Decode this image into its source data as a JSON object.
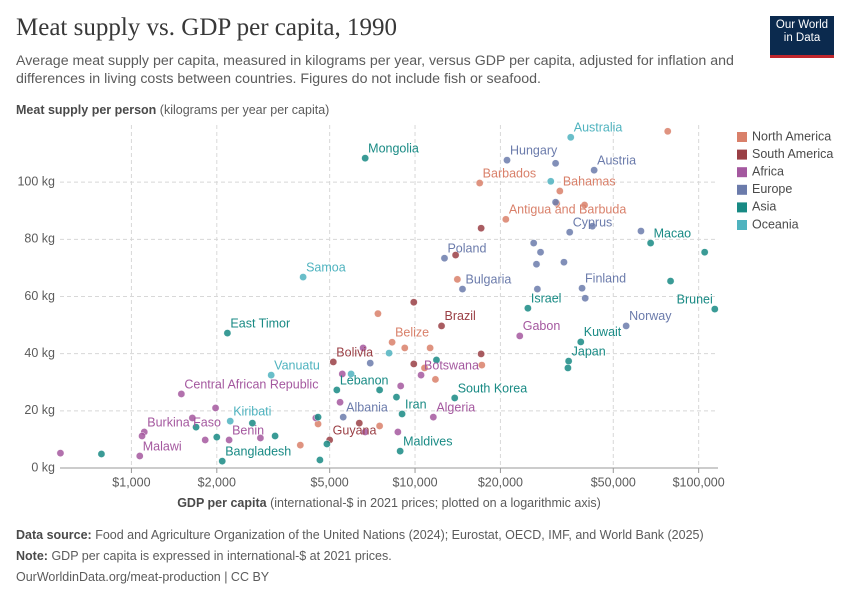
{
  "chart_data": {
    "type": "scatter",
    "title": "Meat supply vs. GDP per capita, 1990",
    "subtitle": "Average meat supply per capita, measured in kilograms per year, versus GDP per capita, adjusted for inflation and differences in living costs between countries. Figures do not include fish or seafood.",
    "logo": [
      "Our World",
      "in Data"
    ],
    "y_label": "Meat supply per person",
    "y_label_note": "(kilograms per year per capita)",
    "x_label": "GDP per capita",
    "x_label_note": "(international-$ in 2021 prices; plotted on a logarithmic axis)",
    "log_x": true,
    "grid": true,
    "legend_position": "right",
    "xlim": [
      560,
      117000
    ],
    "ylim": [
      0,
      120
    ],
    "xticks": [
      {
        "value": 1000,
        "label": "$1,000"
      },
      {
        "value": 2000,
        "label": "$2,000"
      },
      {
        "value": 5000,
        "label": "$5,000"
      },
      {
        "value": 10000,
        "label": "$10,000"
      },
      {
        "value": 20000,
        "label": "$20,000"
      },
      {
        "value": 50000,
        "label": "$50,000"
      },
      {
        "value": 100000,
        "label": "$100,000"
      }
    ],
    "yticks": [
      {
        "value": 0,
        "label": "0 kg"
      },
      {
        "value": 20,
        "label": "20 kg"
      },
      {
        "value": 40,
        "label": "40 kg"
      },
      {
        "value": 60,
        "label": "60 kg"
      },
      {
        "value": 80,
        "label": "80 kg"
      },
      {
        "value": 100,
        "label": "100 kg"
      }
    ],
    "series": [
      {
        "name": "North America",
        "color": "#d9806a",
        "x": [
          16900,
          32400,
          20900,
          8300,
          7400,
          9200,
          10800,
          11300,
          11800,
          14100,
          17200,
          31600,
          39600,
          77800,
          3940,
          4550,
          7500
        ],
        "values": [
          99.7,
          96.9,
          87,
          44,
          54,
          42,
          35,
          42,
          31,
          66,
          36,
          92.6,
          92,
          117.8,
          8,
          15.4,
          14.7
        ],
        "labels": [
          "Barbados",
          "Bahamas",
          "Antigua and Barbuda",
          "Belize",
          null,
          null,
          null,
          null,
          null,
          null,
          null,
          null,
          null,
          null,
          null,
          null,
          null
        ]
      },
      {
        "name": "South America",
        "color": "#9a3f45",
        "x": [
          12400,
          5150,
          5000,
          9900,
          9900,
          17100,
          17100,
          13900,
          6360
        ],
        "values": [
          49.7,
          37.1,
          9.8,
          58,
          36.4,
          83.9,
          39.9,
          74.5,
          15.7
        ],
        "labels": [
          "Brazil",
          "Bolivia",
          "Guyana",
          null,
          null,
          null,
          null,
          null,
          null
        ]
      },
      {
        "name": "Africa",
        "color": "#a4589f",
        "x": [
          1500,
          1110,
          1070,
          2210,
          10500,
          23400,
          11600,
          562,
          1090,
          1640,
          1980,
          1820,
          2850,
          4470,
          5540,
          6560,
          8900,
          6670,
          8700,
          5440
        ],
        "values": [
          25.9,
          12.6,
          4.2,
          9.8,
          32.5,
          46.2,
          17.8,
          5.2,
          11.2,
          17.5,
          21,
          9.8,
          10.5,
          17.5,
          32.9,
          42,
          28.7,
          12.6,
          12.6,
          23
        ],
        "labels": [
          "Central African Republic",
          "Burkina Faso",
          "Malawi",
          "Benin",
          "Botswana",
          "Gabon",
          "Algeria",
          null,
          null,
          null,
          null,
          null,
          null,
          null,
          null,
          null,
          null,
          null,
          null,
          null
        ]
      },
      {
        "name": "Europe",
        "color": "#6b7bab",
        "x": [
          21100,
          42800,
          35100,
          12700,
          14700,
          38800,
          55500,
          5580,
          31300,
          31300,
          26200,
          27700,
          26800,
          42200,
          62600,
          33500,
          39800,
          27000,
          6950
        ],
        "values": [
          107.7,
          104.2,
          82.5,
          73.4,
          62.6,
          62.9,
          49.7,
          17.8,
          106.6,
          93,
          78.7,
          75.5,
          71.3,
          84.6,
          82.9,
          72,
          59.4,
          62.6,
          36.7
        ],
        "labels": [
          "Hungary",
          "Austria",
          "Cyprus",
          "Poland",
          "Bulgaria",
          "Finland",
          "Norway",
          "Albania",
          null,
          null,
          null,
          null,
          null,
          null,
          null,
          null,
          null,
          null,
          null
        ]
      },
      {
        "name": "Asia",
        "color": "#188a84",
        "x": [
          6670,
          2180,
          67700,
          114000,
          25000,
          38400,
          34800,
          5300,
          13800,
          9000,
          8860,
          2090,
          784,
          1690,
          2000,
          2670,
          3210,
          4550,
          4620,
          4890,
          7500,
          11900,
          34600,
          79600,
          105000,
          8600
        ],
        "values": [
          108.4,
          47.2,
          78.7,
          55.6,
          55.9,
          44.1,
          37.4,
          27.3,
          24.5,
          18.9,
          5.9,
          2.4,
          4.9,
          14.3,
          10.8,
          15.7,
          11.2,
          17.8,
          2.8,
          8.4,
          27.3,
          37.8,
          35,
          65.4,
          75.5,
          24.8
        ],
        "labels": [
          "Mongolia",
          "East Timor",
          "Macao",
          "Brunei",
          "Israel",
          "Kuwait",
          "Japan",
          "Lebanon",
          "South Korea",
          "Iran",
          "Maldives",
          "Bangladesh",
          null,
          null,
          null,
          null,
          null,
          null,
          null,
          null,
          null,
          null,
          null,
          null,
          null,
          null
        ]
      },
      {
        "name": "Oceania",
        "color": "#4fb3bf",
        "x": [
          35400,
          4030,
          3110,
          2230,
          30100,
          8100,
          5950
        ],
        "values": [
          115.7,
          66.8,
          32.5,
          16.4,
          100.3,
          40.2,
          32.9
        ],
        "labels": [
          "Australia",
          "Samoa",
          "Vanuatu",
          "Kiribati",
          null,
          null,
          null
        ]
      }
    ],
    "source_label": "Data source:",
    "source": "Food and Agriculture Organization of the United Nations (2024); Eurostat, OECD, IMF, and World Bank (2025)",
    "note_label": "Note:",
    "note": "GDP per capita is expressed in international-$ at 2021 prices.",
    "footer": "OurWorldinData.org/meat-production | CC BY"
  }
}
